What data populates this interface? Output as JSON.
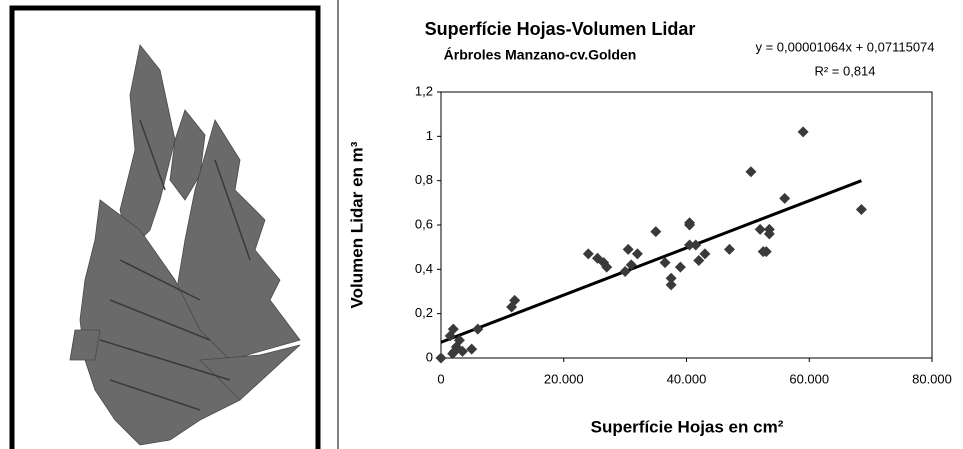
{
  "chart_data": {
    "type": "scatter",
    "title": "Superfície Hojas-Volumen Lidar",
    "subtitle": "Árbroles Manzano-cv.Golden",
    "xlabel": "Superfície Hojas en cm²",
    "ylabel": "Volumen Lidar en m³",
    "xlim": [
      0,
      80000
    ],
    "ylim": [
      0,
      1.2
    ],
    "xticks": [
      0,
      {
        "value": 20000,
        "label": "20.000"
      },
      {
        "value": 40000,
        "label": "40.000"
      },
      {
        "value": 60000,
        "label": "60.000"
      },
      {
        "value": 80000,
        "label": "80.000"
      }
    ],
    "yticks": [
      0,
      {
        "value": 0.2,
        "label": "0,2"
      },
      {
        "value": 0.4,
        "label": "0,4"
      },
      {
        "value": 0.6,
        "label": "0,6"
      },
      {
        "value": 0.8,
        "label": "0,8"
      },
      1,
      {
        "value": 1.2,
        "label": "1,2"
      }
    ],
    "grid": false,
    "series": [
      {
        "color": "#3a3a3a",
        "x": [
          0,
          1900,
          2000,
          1500,
          2500,
          3000,
          2200,
          5000,
          6000,
          3500,
          11500,
          12000,
          24000,
          25500,
          26500,
          27000,
          30500,
          30000,
          31000,
          32000,
          35000,
          36500,
          37500,
          37500,
          39000,
          40500,
          40500,
          40500,
          41500,
          42000,
          43000,
          47000,
          50500,
          52000,
          52500,
          53000,
          53500,
          53500,
          56000,
          59000,
          68500
        ],
        "values": [
          0,
          0.02,
          0.13,
          0.1,
          0.05,
          0.08,
          0.03,
          0.04,
          0.13,
          0.03,
          0.23,
          0.26,
          0.47,
          0.45,
          0.43,
          0.41,
          0.49,
          0.39,
          0.42,
          0.47,
          0.57,
          0.43,
          0.36,
          0.33,
          0.41,
          0.61,
          0.6,
          0.51,
          0.51,
          0.44,
          0.47,
          0.49,
          0.84,
          0.58,
          0.48,
          0.48,
          0.58,
          0.56,
          0.72,
          1.02,
          0.67
        ]
      }
    ],
    "trendline": {
      "equation": "y = 0,00001064x + 0,07115074",
      "r2": "R² = 0,814",
      "color": "#000000",
      "x": [
        0,
        68500
      ],
      "values": [
        0.0712,
        0.8
      ]
    }
  }
}
